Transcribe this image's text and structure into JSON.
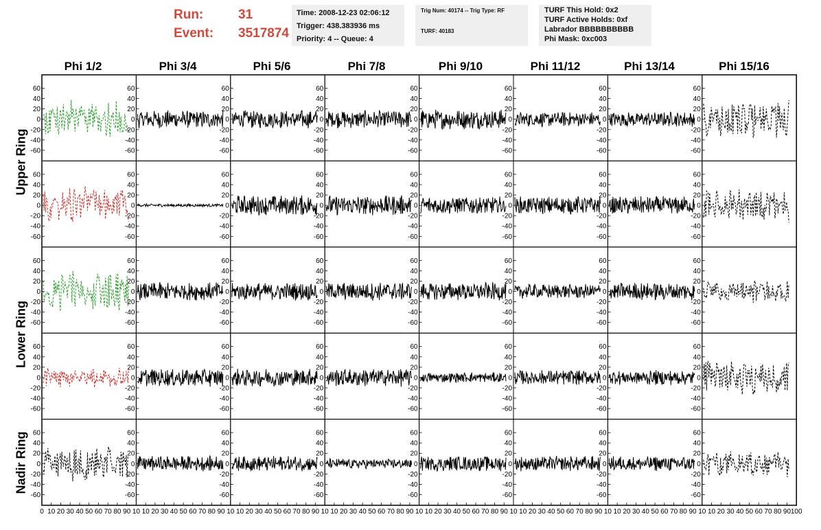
{
  "header": {
    "run_label": "Run:",
    "run_value": "31",
    "event_label": "Event:",
    "event_value": "3517874"
  },
  "info_box_1": {
    "time": "Time: 2008-12-23 02:06:12",
    "trigger": "Trigger: 438.383936 ms",
    "priority": "Priority: 4 -- Queue: 4"
  },
  "info_box_2": {
    "trig": "Trig Num: 40174 -- Trig Type: RF",
    "turf": "TURF: 40183"
  },
  "info_box_3": {
    "hold": "TURF This Hold: 0x2",
    "active": "TURF Active Holds: 0xf",
    "labrador": "Labrador BBBBBBBBBB",
    "phimask": "Phi Mask: 0xc003"
  },
  "columns": [
    "Phi 1/2",
    "Phi 3/4",
    "Phi 5/6",
    "Phi 7/8",
    "Phi 9/10",
    "Phi 11/12",
    "Phi 13/14",
    "Phi 15/16"
  ],
  "rings": [
    "Upper Ring",
    "Lower Ring",
    "Nadir Ring"
  ],
  "colors": {
    "green": "#2e9a2e",
    "red": "#c4322c",
    "black": "#000000"
  },
  "chart_data": {
    "type": "line",
    "ylim": [
      -70,
      70
    ],
    "xlim": [
      0,
      100
    ],
    "yticks": [
      "60",
      "40",
      "20",
      "0",
      "-20",
      "-40",
      "-60"
    ],
    "xticks_first": [
      "0",
      "10",
      "20",
      "30",
      "40",
      "50",
      "60",
      "70",
      "80",
      "90",
      "10"
    ],
    "xticks_mid": [
      "10",
      "20",
      "30",
      "40",
      "50",
      "60",
      "70",
      "80",
      "90",
      "10"
    ],
    "xticks_last": [
      "10",
      "20",
      "30",
      "40",
      "50",
      "60",
      "70",
      "80",
      "90",
      "100"
    ],
    "panels_rows": 5,
    "panels_cols": 8,
    "row_styles": [
      [
        "green",
        "black",
        "black",
        "black",
        "black",
        "black",
        "black",
        "black-dashed"
      ],
      [
        "red",
        "black",
        "black",
        "black",
        "black",
        "black",
        "black",
        "black-dashed"
      ],
      [
        "green",
        "black",
        "black",
        "black",
        "black",
        "black",
        "black",
        "black-dashed"
      ],
      [
        "red",
        "black",
        "black",
        "black",
        "black",
        "black",
        "black",
        "black-dashed"
      ],
      [
        "black-dashed",
        "black",
        "black",
        "black",
        "black",
        "black",
        "black",
        "black-dashed"
      ]
    ],
    "row_amplitudes": [
      [
        40,
        18,
        18,
        18,
        20,
        15,
        15,
        38
      ],
      [
        38,
        3,
        20,
        20,
        18,
        18,
        18,
        35
      ],
      [
        40,
        18,
        18,
        18,
        18,
        15,
        18,
        22
      ],
      [
        20,
        18,
        18,
        18,
        10,
        15,
        15,
        35
      ],
      [
        35,
        15,
        15,
        10,
        15,
        15,
        15,
        28
      ]
    ]
  }
}
